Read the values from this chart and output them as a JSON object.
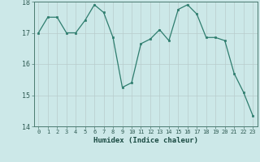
{
  "x": [
    0,
    1,
    2,
    3,
    4,
    5,
    6,
    7,
    8,
    9,
    10,
    11,
    12,
    13,
    14,
    15,
    16,
    17,
    18,
    19,
    20,
    21,
    22,
    23
  ],
  "y": [
    17.0,
    17.5,
    17.5,
    17.0,
    17.0,
    17.4,
    17.9,
    17.65,
    16.85,
    15.25,
    15.4,
    16.65,
    16.8,
    17.1,
    16.75,
    17.75,
    17.9,
    17.6,
    16.85,
    16.85,
    16.75,
    15.7,
    15.1,
    14.35
  ],
  "xlabel": "Humidex (Indice chaleur)",
  "ylim": [
    14,
    18
  ],
  "xlim": [
    -0.5,
    23.5
  ],
  "yticks": [
    14,
    15,
    16,
    17,
    18
  ],
  "xticks": [
    0,
    1,
    2,
    3,
    4,
    5,
    6,
    7,
    8,
    9,
    10,
    11,
    12,
    13,
    14,
    15,
    16,
    17,
    18,
    19,
    20,
    21,
    22,
    23
  ],
  "line_color": "#2e7d6e",
  "marker_color": "#2e7d6e",
  "bg_color": "#cce8e8",
  "grid_color": "#b8cccc",
  "axis_color": "#4a7a70",
  "tick_color": "#2e5a52",
  "xlabel_color": "#1a4a42"
}
